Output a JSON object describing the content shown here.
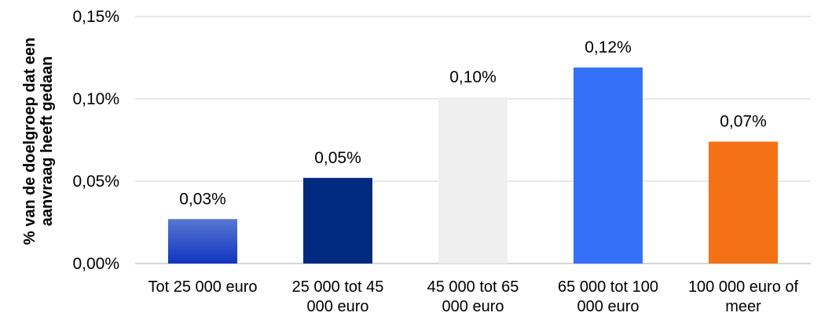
{
  "chart_data": {
    "type": "bar",
    "ylabel": "% van de doelgroep dat een aanvraag heeft gedaan",
    "ylabel_lines": [
      "% van de doelgroep dat een",
      "aanvraag heeft gedaan"
    ],
    "ylim": [
      0,
      0.15
    ],
    "yticks": [
      0,
      0.05,
      0.1,
      0.15
    ],
    "ytick_labels": [
      "0,00%",
      "0,05%",
      "0,10%",
      "0,15%"
    ],
    "grid": true,
    "categories": [
      "Tot 25 000 euro",
      "25 000 tot 45 000 euro",
      "45 000 tot 65 000 euro",
      "65 000 tot 100 000 euro",
      "100 000 euro of meer"
    ],
    "category_lines": [
      [
        "Tot 25 000 euro"
      ],
      [
        "25 000 tot 45",
        "000 euro"
      ],
      [
        "45 000 tot 65",
        "000 euro"
      ],
      [
        "65 000 tot 100",
        "000 euro"
      ],
      [
        "100 000 euro of",
        "meer"
      ]
    ],
    "values": [
      0.027,
      0.052,
      0.101,
      0.119,
      0.074
    ],
    "data_labels": [
      "0,03%",
      "0,05%",
      "0,10%",
      "0,12%",
      "0,07%"
    ],
    "colors": [
      "gradient-blue",
      "#002A80",
      "#EFEFEF",
      "#3570F9",
      "#F47215"
    ],
    "gradient_colors": [
      "#5777D0",
      "#1135C2"
    ]
  }
}
